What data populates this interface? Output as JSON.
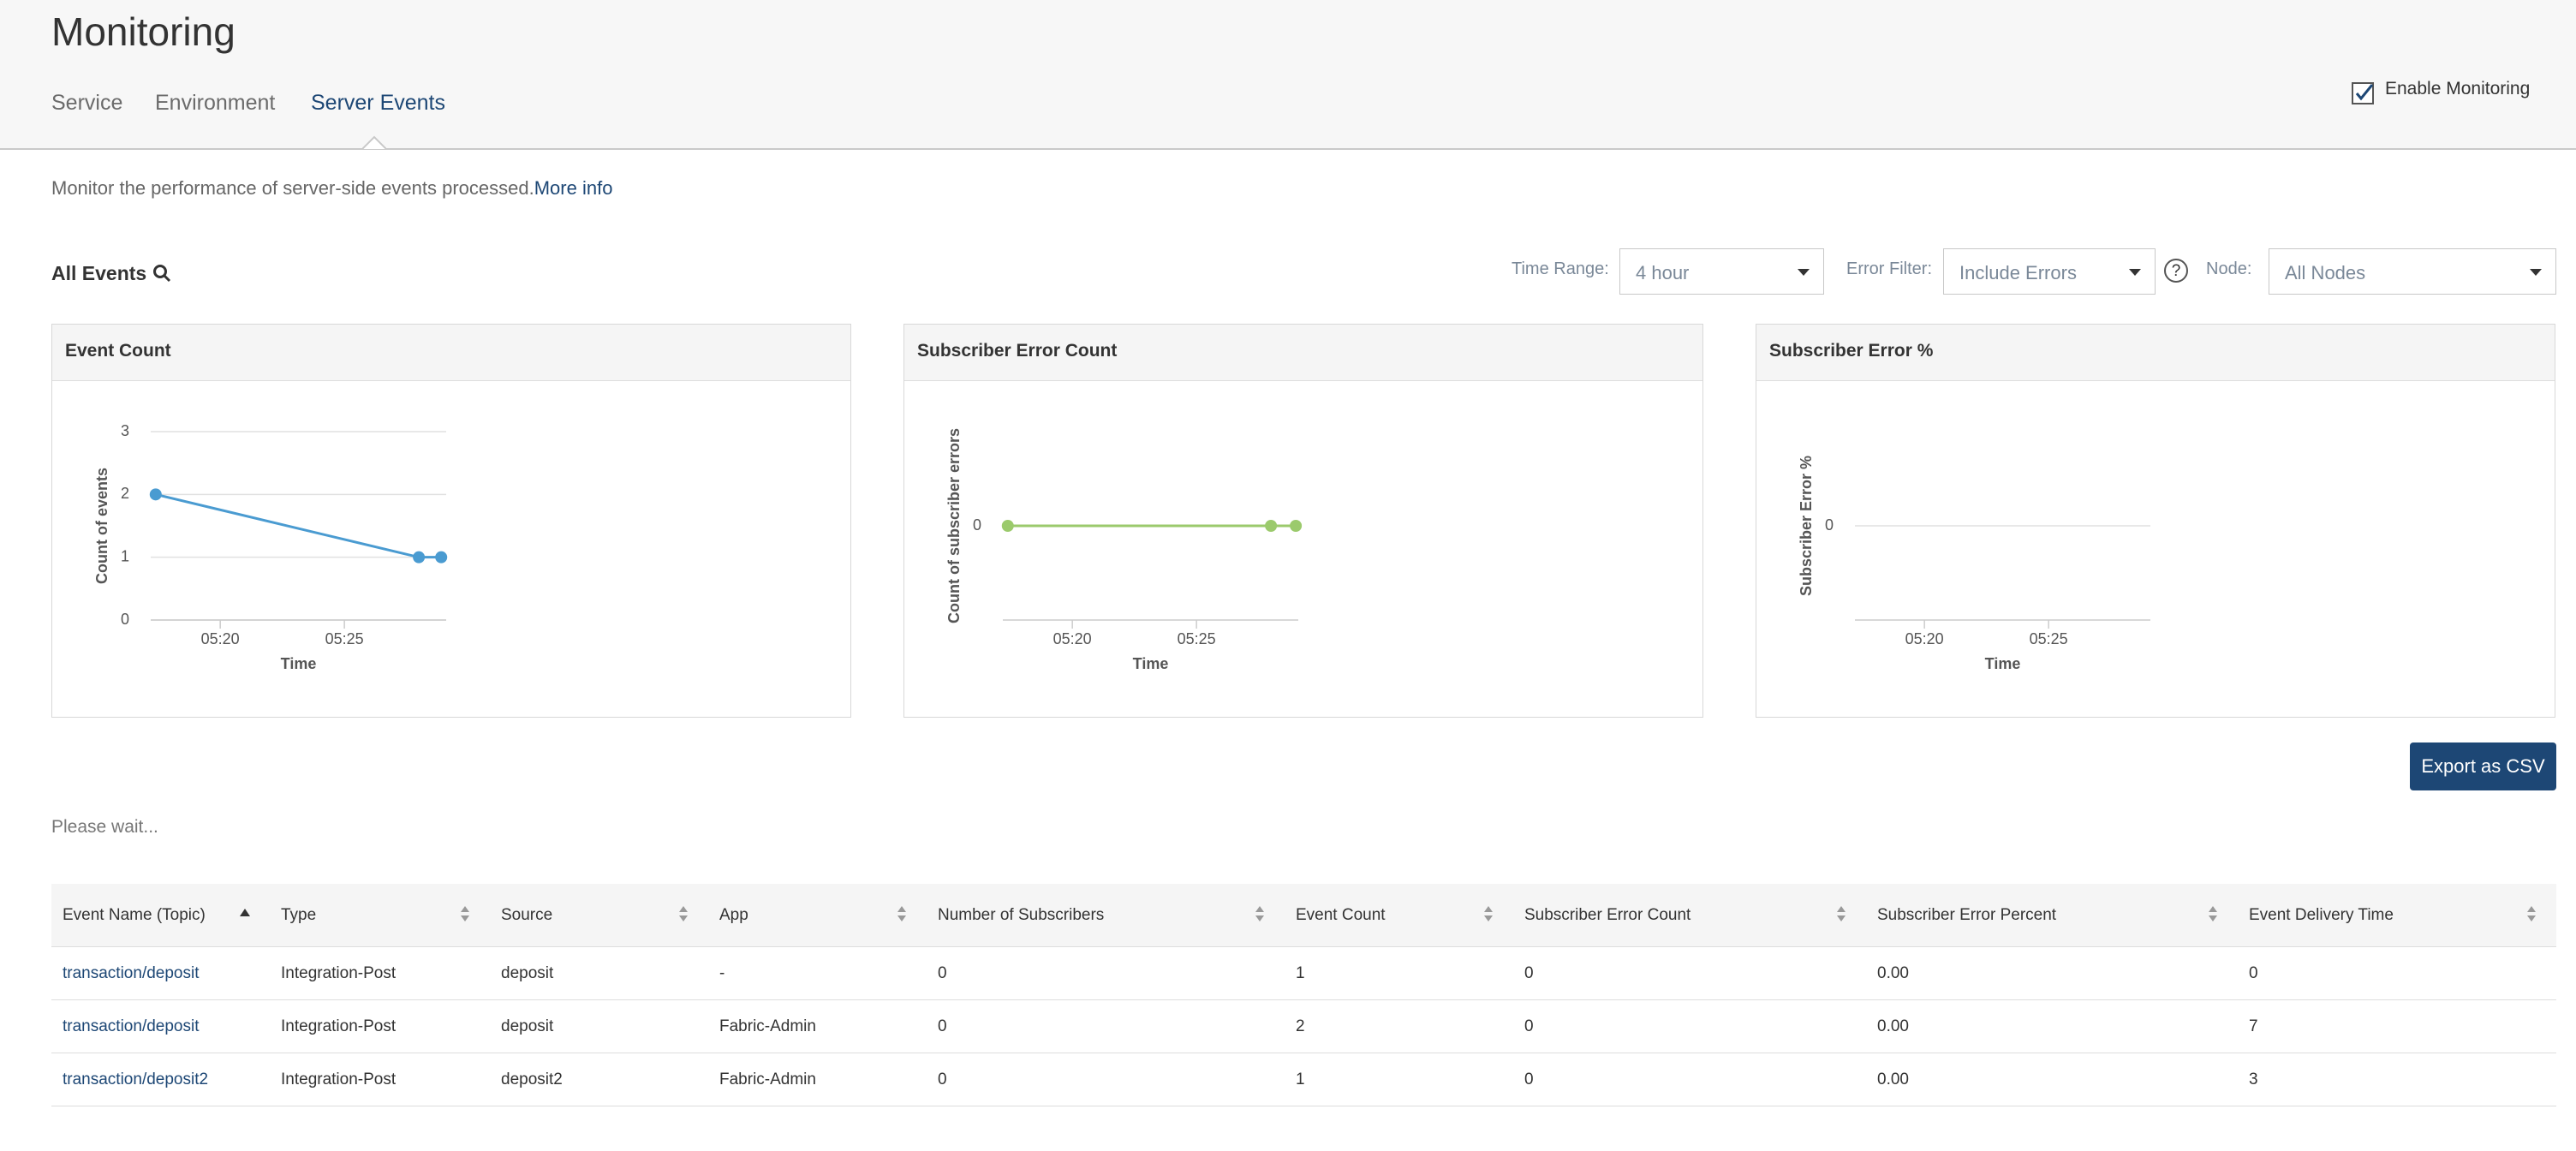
{
  "header": {
    "title": "Monitoring",
    "tabs": [
      "Service",
      "Environment",
      "Server Events"
    ]
  },
  "enable_monitoring": {
    "label": "Enable Monitoring",
    "checked": true
  },
  "description": {
    "text": "Monitor the performance of server-side events processed.",
    "link": "More info"
  },
  "filters": {
    "title": "All Events",
    "time_range": {
      "label": "Time Range:",
      "value": "4 hour"
    },
    "error_filter": {
      "label": "Error Filter:",
      "value": "Include Errors"
    },
    "help": "?",
    "node": {
      "label": "Node:",
      "value": "All Nodes"
    }
  },
  "chart_data": [
    {
      "type": "line",
      "title": "Event Count",
      "x_label": "Time",
      "y_label": "Count of events",
      "x": [
        317.4,
        328.0,
        328.9
      ],
      "series": [
        {
          "name": "Event Count",
          "color": "#4a9bd1",
          "values": [
            2,
            1,
            1
          ]
        }
      ],
      "xlim": [
        317.2,
        329.1
      ],
      "xticks": [
        {
          "value": 320,
          "label": "05:20"
        },
        {
          "value": 325,
          "label": "05:25"
        }
      ],
      "ylim": [
        0,
        3
      ],
      "yticks": [
        0,
        1,
        2,
        3
      ],
      "grid": true
    },
    {
      "type": "line",
      "title": "Subscriber Error Count",
      "x_label": "Time",
      "y_label": "Count of subscriber errors",
      "x": [
        317.4,
        328.0,
        329.0
      ],
      "series": [
        {
          "name": "Subscriber Error Count",
          "color": "#9bca6c",
          "values": [
            0,
            0,
            0
          ]
        }
      ],
      "xlim": [
        317.2,
        329.1
      ],
      "xticks": [
        {
          "value": 320,
          "label": "05:20"
        },
        {
          "value": 325,
          "label": "05:25"
        }
      ],
      "ylim": [
        -1,
        1
      ],
      "yticks": [
        0
      ],
      "grid": true
    },
    {
      "type": "line",
      "title": "Subscriber Error %",
      "x_label": "Time",
      "y_label": "Subscriber Error %",
      "x": [],
      "series": [],
      "xlim": [
        317.2,
        329.1
      ],
      "xticks": [
        {
          "value": 320,
          "label": "05:20"
        },
        {
          "value": 325,
          "label": "05:25"
        }
      ],
      "ylim": [
        -1,
        1
      ],
      "yticks": [
        0
      ],
      "grid": true
    }
  ],
  "export_button": "Export as CSV",
  "status": "Please wait...",
  "table": {
    "columns": [
      "Event Name (Topic)",
      "Type",
      "Source",
      "App",
      "Number of Subscribers",
      "Event Count",
      "Subscriber Error Count",
      "Subscriber Error Percent",
      "Event Delivery Time"
    ],
    "rows": [
      [
        "transaction/deposit",
        "Integration-Post",
        "deposit",
        "-",
        "0",
        "1",
        "0",
        "0.00",
        "0"
      ],
      [
        "transaction/deposit",
        "Integration-Post",
        "deposit",
        "Fabric-Admin",
        "0",
        "2",
        "0",
        "0.00",
        "7"
      ],
      [
        "transaction/deposit2",
        "Integration-Post",
        "deposit2",
        "Fabric-Admin",
        "0",
        "1",
        "0",
        "0.00",
        "3"
      ]
    ]
  }
}
